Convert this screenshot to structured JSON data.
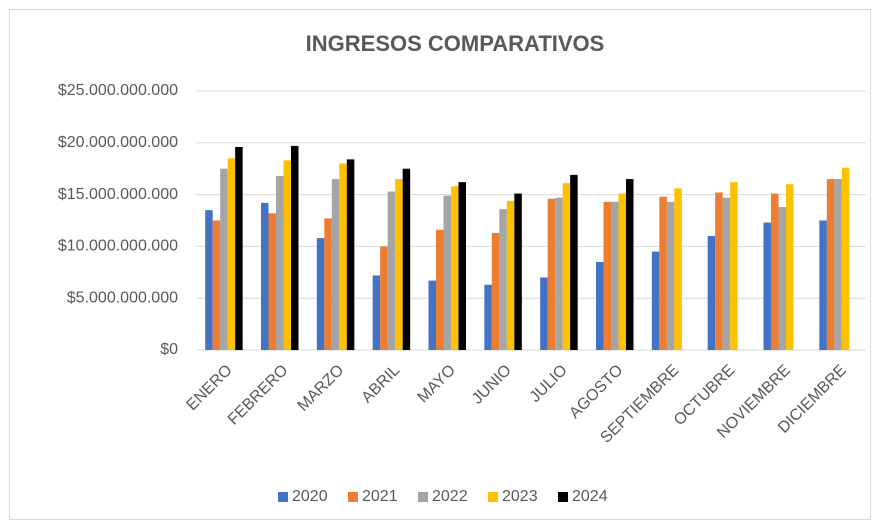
{
  "chart_data": {
    "type": "bar",
    "title": "INGRESOS COMPARATIVOS",
    "categories": [
      "ENERO",
      "FEBRERO",
      "MARZO",
      "ABRIL",
      "MAYO",
      "JUNIO",
      "JULIO",
      "AGOSTO",
      "SEPTIEMBRE",
      "OCTUBRE",
      "NOVIEMBRE",
      "DICIEMBRE"
    ],
    "series": [
      {
        "name": "2020",
        "color": "#4472c4",
        "values": [
          13500000000,
          14200000000,
          10800000000,
          7200000000,
          6700000000,
          6300000000,
          7000000000,
          8500000000,
          9500000000,
          11000000000,
          12300000000,
          12500000000
        ]
      },
      {
        "name": "2021",
        "color": "#ed7d31",
        "values": [
          12500000000,
          13200000000,
          12700000000,
          10000000000,
          11600000000,
          11300000000,
          14600000000,
          14300000000,
          14800000000,
          15200000000,
          15100000000,
          16500000000
        ]
      },
      {
        "name": "2022",
        "color": "#a5a5a5",
        "values": [
          17500000000,
          16800000000,
          16500000000,
          15300000000,
          14900000000,
          13600000000,
          14700000000,
          14300000000,
          14300000000,
          14700000000,
          13800000000,
          16500000000
        ]
      },
      {
        "name": "2023",
        "color": "#ffc000",
        "values": [
          18500000000,
          18300000000,
          18000000000,
          16500000000,
          15800000000,
          14400000000,
          16100000000,
          15100000000,
          15600000000,
          16200000000,
          16000000000,
          17600000000
        ]
      },
      {
        "name": "2024",
        "color": "#000000",
        "values": [
          19600000000,
          19700000000,
          18400000000,
          17500000000,
          16200000000,
          15100000000,
          16900000000,
          16500000000,
          null,
          null,
          null,
          null
        ]
      }
    ],
    "ylim": [
      0,
      25000000000
    ],
    "yticks": [
      {
        "value": 0,
        "label": "$0"
      },
      {
        "value": 5000000000,
        "label": "$5.000.000.000"
      },
      {
        "value": 10000000000,
        "label": "$10.000.000.000"
      },
      {
        "value": 15000000000,
        "label": "$15.000.000.000"
      },
      {
        "value": 20000000000,
        "label": "$20.000.000.000"
      },
      {
        "value": 25000000000,
        "label": "$25.000.000.000"
      }
    ],
    "grid": true,
    "legend": "bottom"
  }
}
